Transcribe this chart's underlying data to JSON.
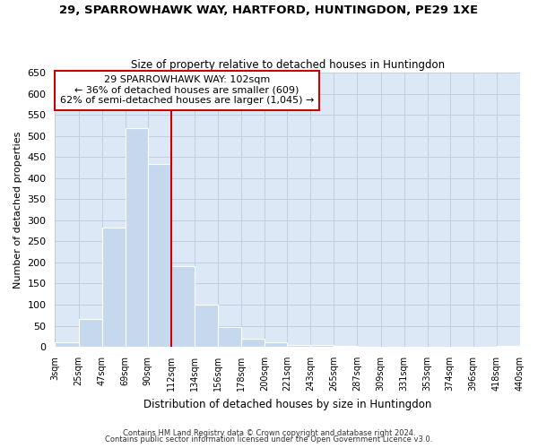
{
  "title": "29, SPARROWHAWK WAY, HARTFORD, HUNTINGDON, PE29 1XE",
  "subtitle": "Size of property relative to detached houses in Huntingdon",
  "xlabel": "Distribution of detached houses by size in Huntingdon",
  "ylabel": "Number of detached properties",
  "bar_color": "#c5d8ee",
  "bins": [
    3,
    25,
    47,
    69,
    90,
    112,
    134,
    156,
    178,
    200,
    221,
    243,
    265,
    287,
    309,
    331,
    353,
    374,
    396,
    418,
    440
  ],
  "bin_labels": [
    "3sqm",
    "25sqm",
    "47sqm",
    "69sqm",
    "90sqm",
    "112sqm",
    "134sqm",
    "156sqm",
    "178sqm",
    "200sqm",
    "221sqm",
    "243sqm",
    "265sqm",
    "287sqm",
    "309sqm",
    "331sqm",
    "353sqm",
    "374sqm",
    "396sqm",
    "418sqm",
    "440sqm"
  ],
  "values": [
    10,
    65,
    283,
    519,
    433,
    192,
    101,
    46,
    20,
    10,
    5,
    5,
    2,
    1,
    0,
    0,
    0,
    0,
    0,
    2
  ],
  "vline_x": 112,
  "vline_color": "#cc0000",
  "ylim": [
    0,
    650
  ],
  "yticks": [
    0,
    50,
    100,
    150,
    200,
    250,
    300,
    350,
    400,
    450,
    500,
    550,
    600,
    650
  ],
  "annotation_title": "29 SPARROWHAWK WAY: 102sqm",
  "annotation_line1": "← 36% of detached houses are smaller (609)",
  "annotation_line2": "62% of semi-detached houses are larger (1,045) →",
  "annotation_box_color": "#ffffff",
  "annotation_box_edge": "#cc0000",
  "footer1": "Contains HM Land Registry data © Crown copyright and database right 2024.",
  "footer2": "Contains public sector information licensed under the Open Government Licence v3.0.",
  "background_color": "#ffffff",
  "plot_bg_color": "#dce8f5",
  "grid_color": "#c0cfe0"
}
